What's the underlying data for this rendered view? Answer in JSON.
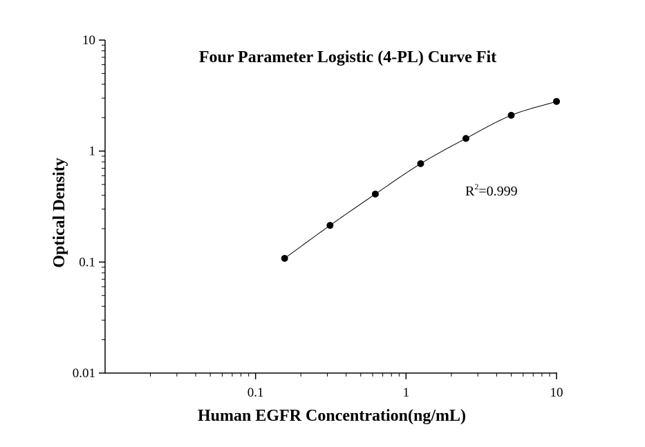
{
  "chart_data": {
    "type": "scatter",
    "title": "Four Parameter Logistic (4-PL) Curve Fit",
    "xlabel": "Human EGFR Concentration(ng/mL)",
    "ylabel": "Optical Density",
    "xscale": "log",
    "yscale": "log",
    "xlim": [
      0.01,
      10
    ],
    "ylim": [
      0.01,
      10
    ],
    "xticks": [
      "0.1",
      "1",
      "10"
    ],
    "yticks": [
      "0.01",
      "0.1",
      "1",
      "10"
    ],
    "grid": false,
    "series": [
      {
        "x": [
          0.156,
          0.3125,
          0.625,
          1.25,
          2.5,
          5,
          10
        ],
        "y": [
          0.108,
          0.214,
          0.41,
          0.77,
          1.3,
          2.1,
          2.8
        ]
      }
    ],
    "fit_curve": {
      "type": "4-PL",
      "x_range": [
        0.156,
        10
      ]
    },
    "annotation": {
      "base": "R",
      "sup": "2",
      "rest": "=0.999"
    },
    "colors": {
      "points": "#000000",
      "curve": "#000000",
      "axes": "#000000"
    }
  }
}
